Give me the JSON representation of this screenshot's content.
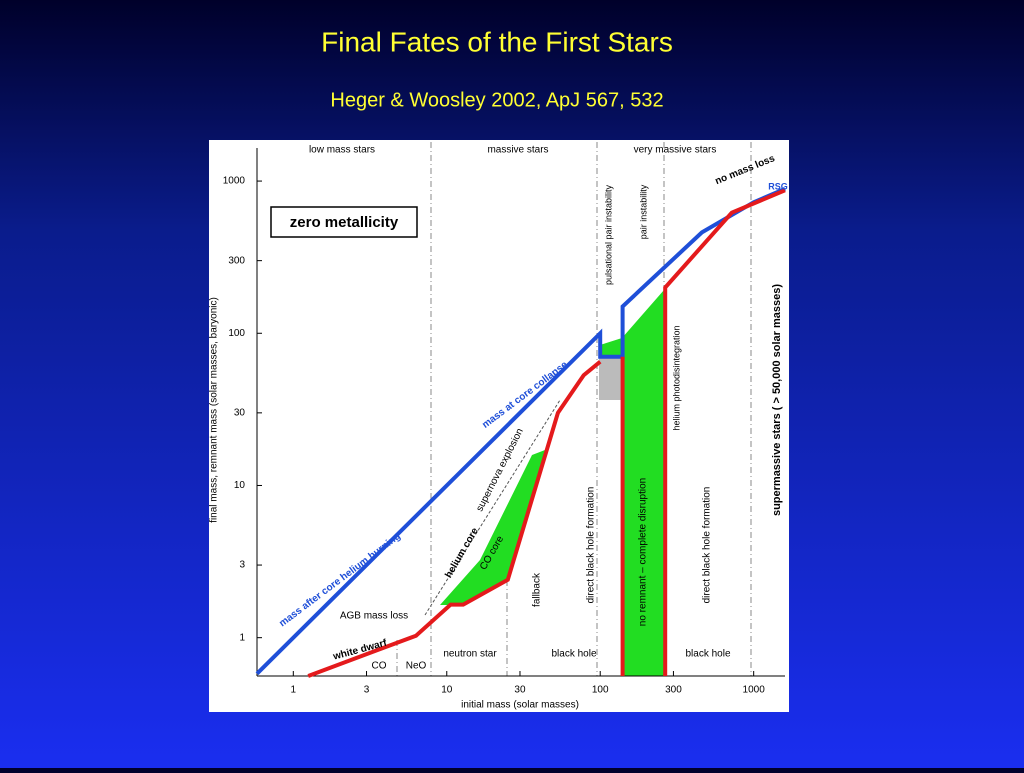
{
  "slide": {
    "title": "Final Fates of the First Stars",
    "subtitle": "Heger & Woosley 2002, ApJ 567, 532"
  },
  "chart_data": {
    "type": "line",
    "x_label": "initial mass (solar masses)",
    "y_label": "final mass, remnant mass (solar masses, baryonic)",
    "log_x": true,
    "log_y": true,
    "xlim": [
      0.58,
      1600
    ],
    "ylim": [
      0.56,
      1600
    ],
    "xticks": [
      1,
      3,
      10,
      30,
      100,
      300,
      1000
    ],
    "yticks": [
      1,
      3,
      10,
      30,
      100,
      300,
      1000
    ],
    "series": [
      {
        "name": "mass at core collapse",
        "color": "#1f4fd8",
        "x": [
          0.58,
          100,
          100,
          140,
          140,
          460,
          1000,
          1600
        ],
        "values": [
          0.58,
          100,
          70,
          70,
          150,
          460,
          725,
          890
        ]
      },
      {
        "name": "remnant mass",
        "color": "#e41a1c",
        "x": [
          1.25,
          6.3,
          10.6,
          12.8,
          25,
          53,
          78,
          100,
          null,
          140,
          140,
          null,
          265,
          265,
          720,
          1600
        ],
        "values": [
          0.56,
          1.03,
          1.65,
          1.65,
          2.4,
          30,
          53,
          65,
          null,
          70,
          0.56,
          null,
          0.56,
          200,
          620,
          870
        ]
      }
    ],
    "annotations": [
      "low mass stars",
      "massive stars",
      "very massive stars",
      "zero metallicity",
      "mass after core helium burning",
      "mass at core collapse",
      "white dwarf",
      "neutron star",
      "black hole",
      "black hole",
      "CO",
      "NeO",
      "AGB mass loss",
      "helium core",
      "CO core",
      "supernova explosion",
      "fallback",
      "direct black hole formation",
      "direct black hole formation",
      "no remnant – complete disruption",
      "pulsational pair instability",
      "pair instability",
      "helium photodisintegration",
      "supermassive stars ( > 50,000 solar masses)",
      "no mass loss",
      "RSG"
    ]
  }
}
